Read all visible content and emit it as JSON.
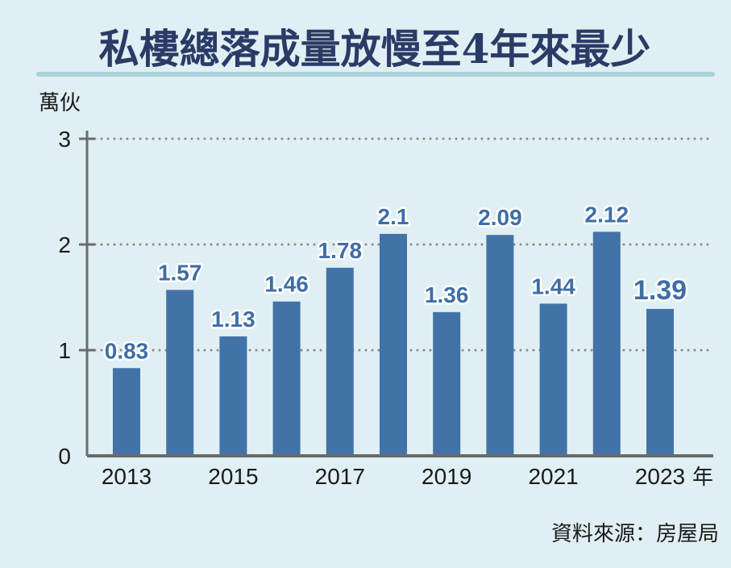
{
  "chart_data": {
    "type": "bar",
    "title": "私樓總落成量放慢至4年來最少",
    "ylabel": "萬伙",
    "xlabel_suffix": "年",
    "categories": [
      "2013",
      "2014",
      "2015",
      "2016",
      "2017",
      "2018",
      "2019",
      "2020",
      "2021",
      "2022",
      "2023"
    ],
    "x_tick_labels": [
      "2013",
      "",
      "2015",
      "",
      "2017",
      "",
      "2019",
      "",
      "2021",
      "",
      "2023"
    ],
    "values": [
      0.83,
      1.57,
      1.13,
      1.46,
      1.78,
      2.1,
      1.36,
      2.09,
      1.44,
      2.12,
      1.39
    ],
    "data_labels": [
      "0.83",
      "1.57",
      "1.13",
      "1.46",
      "1.78",
      "2.1",
      "1.36",
      "2.09",
      "1.44",
      "2.12",
      "1.39"
    ],
    "highlight_index": 10,
    "ylim": [
      0,
      3
    ],
    "y_ticks": [
      "0",
      "1",
      "2",
      "3"
    ],
    "grid": "dotted horizontal",
    "source": "資料來源：房屋局",
    "colors": {
      "bar": "#4273a8",
      "label": "#3e6ea6",
      "title": "#2a3b66",
      "rule": "#a9d2da"
    }
  }
}
